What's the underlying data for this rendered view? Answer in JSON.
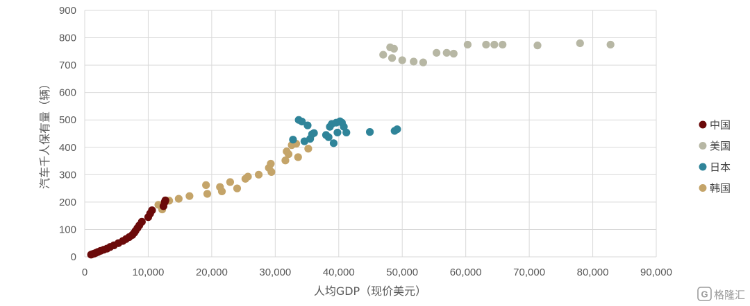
{
  "chart_data": {
    "type": "scatter",
    "xlabel": "人均GDP（现价美元）",
    "ylabel": "汽车千人保有量（辆）",
    "xlim": [
      0,
      90000
    ],
    "ylim": [
      0,
      900
    ],
    "x_ticks": [
      "0",
      "10,000",
      "20,000",
      "30,000",
      "40,000",
      "50,000",
      "60,000",
      "70,000",
      "80,000",
      "90,000"
    ],
    "y_ticks": [
      "0",
      "100",
      "200",
      "300",
      "400",
      "500",
      "600",
      "700",
      "800",
      "900"
    ],
    "grid": true,
    "legend_position": "right",
    "series": [
      {
        "name": "中国",
        "color": "#6b0a0a",
        "points": [
          [
            1000,
            8
          ],
          [
            1200,
            10
          ],
          [
            1500,
            12
          ],
          [
            1800,
            15
          ],
          [
            2100,
            18
          ],
          [
            2500,
            22
          ],
          [
            3000,
            26
          ],
          [
            3500,
            30
          ],
          [
            4000,
            36
          ],
          [
            4600,
            42
          ],
          [
            5300,
            50
          ],
          [
            6000,
            58
          ],
          [
            6500,
            65
          ],
          [
            7000,
            72
          ],
          [
            7500,
            80
          ],
          [
            7800,
            88
          ],
          [
            8000,
            95
          ],
          [
            8300,
            105
          ],
          [
            8600,
            115
          ],
          [
            9000,
            128
          ],
          [
            10000,
            145
          ],
          [
            10300,
            158
          ],
          [
            10600,
            170
          ],
          [
            12400,
            185
          ],
          [
            12600,
            200
          ],
          [
            12700,
            206
          ]
        ]
      },
      {
        "name": "美国",
        "color": "#b7b7a4",
        "points": [
          [
            47000,
            738
          ],
          [
            48100,
            765
          ],
          [
            48400,
            726
          ],
          [
            48700,
            760
          ],
          [
            50000,
            718
          ],
          [
            51800,
            713
          ],
          [
            53300,
            710
          ],
          [
            55400,
            745
          ],
          [
            57000,
            745
          ],
          [
            58100,
            742
          ],
          [
            60300,
            775
          ],
          [
            63200,
            775
          ],
          [
            64500,
            775
          ],
          [
            65800,
            775
          ],
          [
            71300,
            772
          ],
          [
            78000,
            780
          ],
          [
            82800,
            775
          ]
        ]
      },
      {
        "name": "日本",
        "color": "#2f8499",
        "points": [
          [
            32800,
            428
          ],
          [
            33700,
            500
          ],
          [
            34200,
            494
          ],
          [
            34600,
            422
          ],
          [
            35100,
            480
          ],
          [
            35500,
            431
          ],
          [
            35800,
            448
          ],
          [
            36100,
            452
          ],
          [
            38000,
            445
          ],
          [
            38400,
            437
          ],
          [
            38600,
            475
          ],
          [
            38900,
            485
          ],
          [
            39200,
            415
          ],
          [
            39600,
            490
          ],
          [
            39800,
            454
          ],
          [
            40200,
            495
          ],
          [
            40500,
            490
          ],
          [
            40800,
            475
          ],
          [
            41200,
            454
          ],
          [
            44900,
            456
          ],
          [
            48800,
            460
          ],
          [
            49200,
            466
          ]
        ]
      },
      {
        "name": "韩国",
        "color": "#c4a469",
        "points": [
          [
            11600,
            190
          ],
          [
            12200,
            173
          ],
          [
            13300,
            205
          ],
          [
            14800,
            212
          ],
          [
            16500,
            222
          ],
          [
            19100,
            262
          ],
          [
            19300,
            230
          ],
          [
            21300,
            255
          ],
          [
            21600,
            239
          ],
          [
            22900,
            273
          ],
          [
            24000,
            250
          ],
          [
            25300,
            285
          ],
          [
            25700,
            293
          ],
          [
            27400,
            300
          ],
          [
            29000,
            325
          ],
          [
            29300,
            340
          ],
          [
            29400,
            310
          ],
          [
            31600,
            352
          ],
          [
            31800,
            385
          ],
          [
            32100,
            375
          ],
          [
            32600,
            408
          ],
          [
            33300,
            413
          ],
          [
            33600,
            364
          ],
          [
            35200,
            395
          ]
        ]
      }
    ]
  },
  "watermark": {
    "logo_text": "G",
    "text": "格隆汇"
  }
}
